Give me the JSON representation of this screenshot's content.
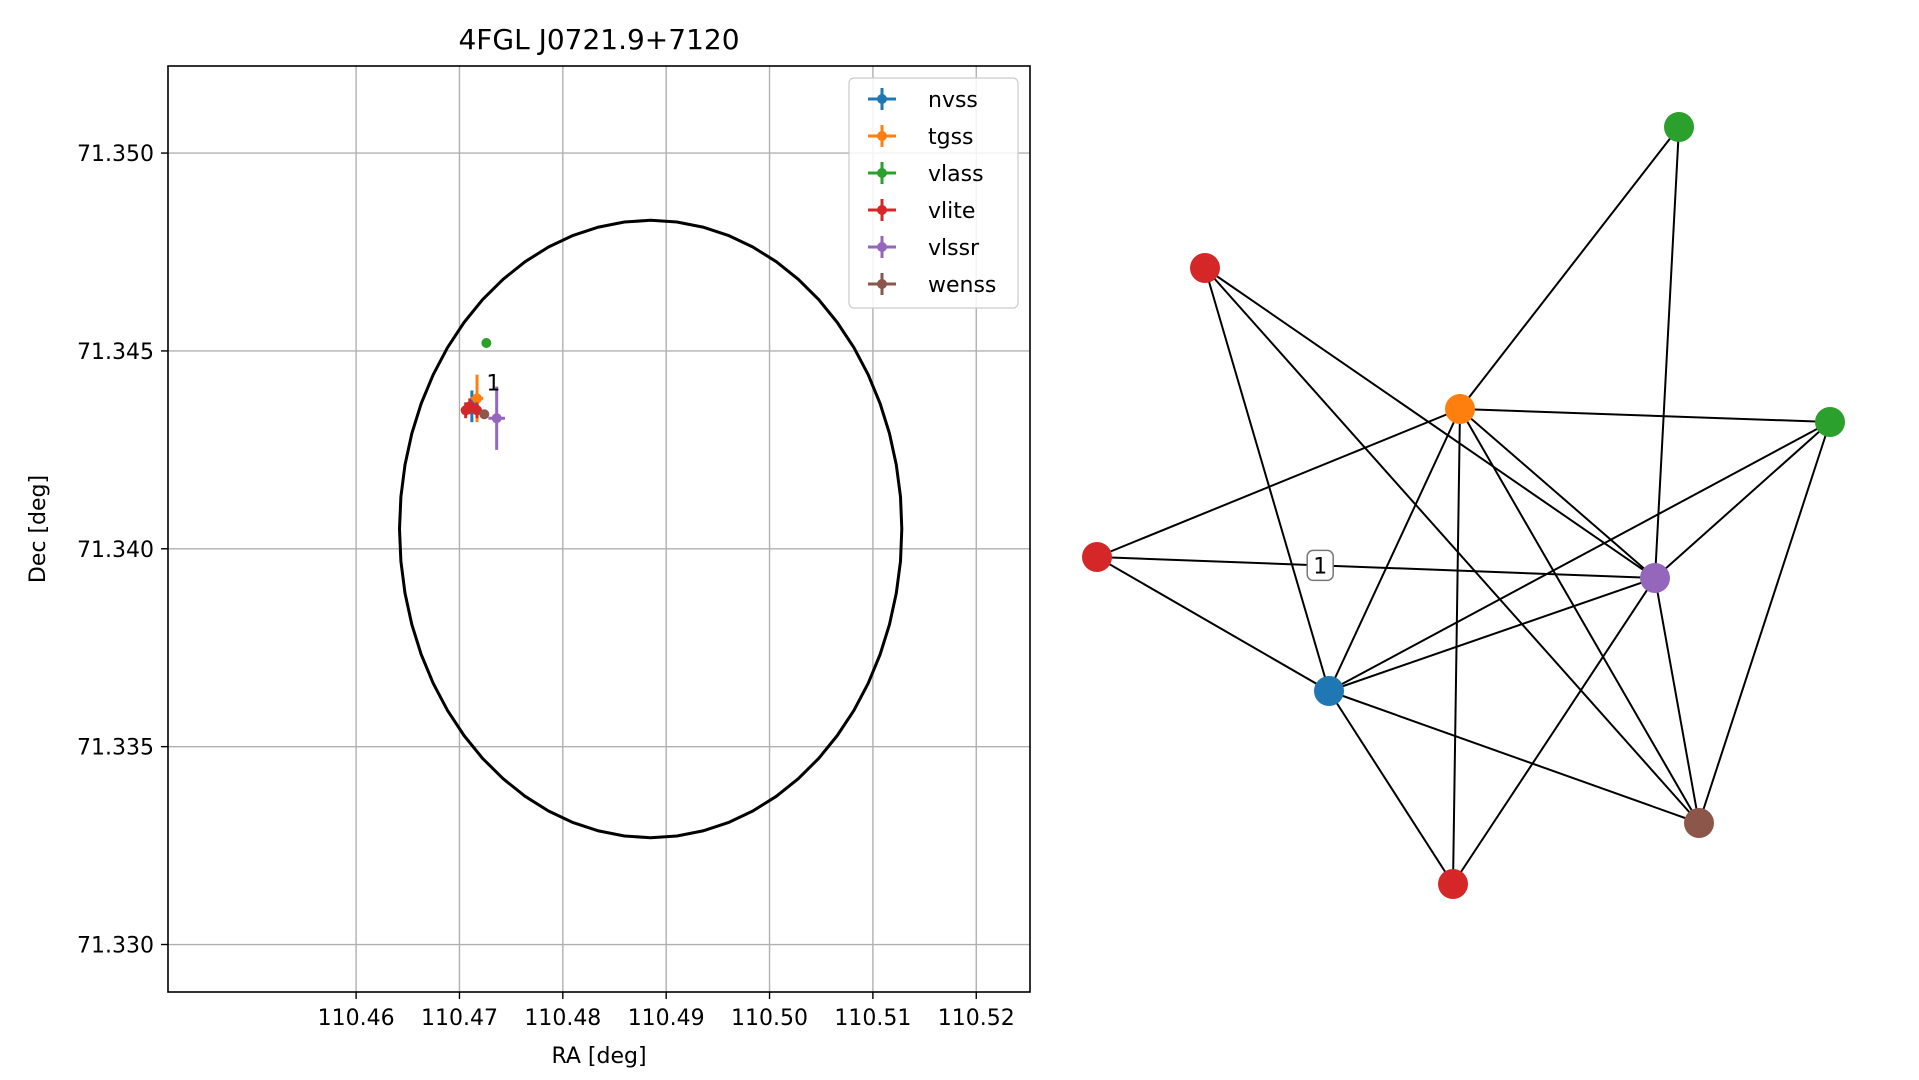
{
  "chart_data": [
    {
      "type": "scatter",
      "title": "4FGL J0721.9+7120",
      "xlabel": "RA [deg]",
      "ylabel": "Dec [deg]",
      "xlim": [
        110.4418,
        110.5252
      ],
      "ylim": [
        71.3288,
        71.3522
      ],
      "grid": true,
      "legend_position": "top-right",
      "x_ticks": [
        "110.46",
        "110.47",
        "110.48",
        "110.49",
        "110.50",
        "110.51",
        "110.52"
      ],
      "x_tick_values": [
        110.46,
        110.47,
        110.48,
        110.49,
        110.5,
        110.51,
        110.52
      ],
      "y_ticks": [
        "71.330",
        "71.335",
        "71.340",
        "71.345",
        "71.350"
      ],
      "y_tick_values": [
        71.33,
        71.335,
        71.34,
        71.345,
        71.35
      ],
      "ellipse": {
        "ra_center": 110.4885,
        "dec_center": 71.3405,
        "ra_semi_axis": 0.0243,
        "dec_semi_axis": 0.0078,
        "color": "#000000"
      },
      "annotation": {
        "text": "1",
        "ra": 110.4726,
        "dec": 71.3442
      },
      "series": [
        {
          "name": "nvss",
          "color": "#1f77b4",
          "points": [
            {
              "ra": 110.4712,
              "dec": 71.3436,
              "ra_err": 0.0007,
              "dec_err": 0.0004
            }
          ]
        },
        {
          "name": "tgss",
          "color": "#ff7f0e",
          "points": [
            {
              "ra": 110.4717,
              "dec": 71.3438,
              "ra_err": 0.0006,
              "dec_err": 0.0006
            }
          ]
        },
        {
          "name": "vlass",
          "color": "#2ca02c",
          "points": [
            {
              "ra": 110.4726,
              "dec": 71.3452,
              "ra_err": 0.0001,
              "dec_err": 0.0001
            }
          ]
        },
        {
          "name": "vlite",
          "color": "#d62728",
          "points": [
            {
              "ra": 110.4706,
              "dec": 71.3435,
              "ra_err": 0.0002,
              "dec_err": 0.0002
            },
            {
              "ra": 110.471,
              "dec": 71.3436,
              "ra_err": 0.0002,
              "dec_err": 0.0002
            },
            {
              "ra": 110.4717,
              "dec": 71.3435,
              "ra_err": 0.0002,
              "dec_err": 0.0002
            }
          ]
        },
        {
          "name": "vlssr",
          "color": "#9467bd",
          "points": [
            {
              "ra": 110.4736,
              "dec": 71.3433,
              "ra_err": 0.0008,
              "dec_err": 0.0008
            }
          ]
        },
        {
          "name": "wenss",
          "color": "#8c564b",
          "points": [
            {
              "ra": 110.4724,
              "dec": 71.3434,
              "ra_err": 0.0004,
              "dec_err": 0.0001
            }
          ]
        }
      ]
    },
    {
      "type": "network",
      "label": {
        "text": "1",
        "near_edge": 10,
        "t": 0.4
      },
      "nodes": [
        {
          "id": "tgss",
          "color": "#ff7f0e"
        },
        {
          "id": "vlass1",
          "color": "#2ca02c"
        },
        {
          "id": "vlass2",
          "color": "#2ca02c"
        },
        {
          "id": "vlite1",
          "color": "#d62728"
        },
        {
          "id": "vlite2",
          "color": "#d62728"
        },
        {
          "id": "vlite3",
          "color": "#d62728"
        },
        {
          "id": "vlssr",
          "color": "#9467bd"
        },
        {
          "id": "nvss",
          "color": "#1f77b4"
        },
        {
          "id": "wenss",
          "color": "#8c564b"
        }
      ],
      "edges": [
        [
          "vlite1",
          "vlssr"
        ],
        [
          "vlite1",
          "nvss"
        ],
        [
          "vlite1",
          "wenss"
        ],
        [
          "tgss",
          "vlass1"
        ],
        [
          "tgss",
          "vlass2"
        ],
        [
          "tgss",
          "vlite2"
        ],
        [
          "tgss",
          "vlssr"
        ],
        [
          "tgss",
          "nvss"
        ],
        [
          "tgss",
          "vlite3"
        ],
        [
          "tgss",
          "wenss"
        ],
        [
          "vlite2",
          "vlssr"
        ],
        [
          "vlite2",
          "nvss"
        ],
        [
          "vlass1",
          "vlssr"
        ],
        [
          "vlass2",
          "nvss"
        ],
        [
          "vlass2",
          "vlssr"
        ],
        [
          "vlass2",
          "wenss"
        ],
        [
          "vlssr",
          "nvss"
        ],
        [
          "vlssr",
          "vlite3"
        ],
        [
          "vlssr",
          "wenss"
        ],
        [
          "nvss",
          "vlite3"
        ],
        [
          "nvss",
          "wenss"
        ]
      ]
    }
  ]
}
